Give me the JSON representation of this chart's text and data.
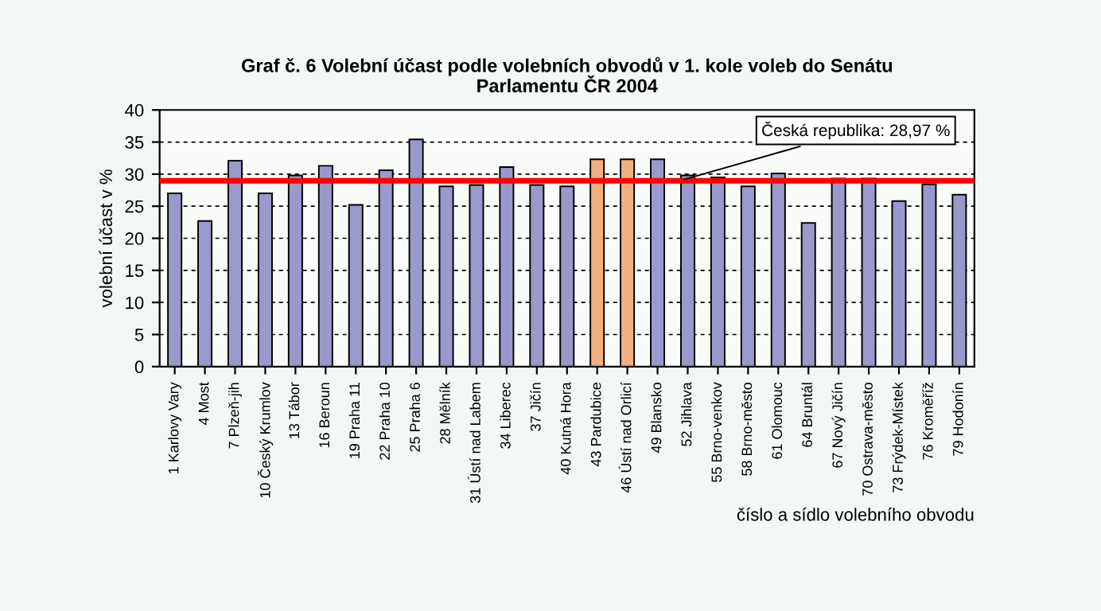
{
  "chart_data": {
    "type": "bar",
    "title": "Graf č. 6 Volební účast podle volebních obvodů v 1. kole voleb do Senátu\nParlamentu ČR 2004",
    "xlabel": "číslo a sídlo volebního obvodu",
    "ylabel": "volební účast v %",
    "categories": [
      "1 Karlovy Vary",
      "4 Most",
      "7 Plzeň-jih",
      "10 Český Krumlov",
      "13 Tábor",
      "16 Beroun",
      "19 Praha 11",
      "22 Praha 10",
      "25 Praha 6",
      "28 Mělník",
      "31 Ústí nad Labem",
      "34 Liberec",
      "37 Jičín",
      "40 Kutná Hora",
      "43 Pardubice",
      "46 Ústí nad Orlicí",
      "49 Blansko",
      "52 Jihlava",
      "55 Brno-venkov",
      "58 Brno-město",
      "61 Olomouc",
      "64 Bruntál",
      "67 Nový Jičín",
      "70 Ostrava-město",
      "73 Frýdek-Místek",
      "76 Kroměříž",
      "79 Hodonín"
    ],
    "values": [
      27.0,
      22.7,
      32.1,
      27.0,
      29.8,
      31.3,
      25.2,
      30.6,
      35.4,
      28.1,
      28.3,
      31.1,
      28.3,
      28.1,
      32.3,
      32.3,
      32.3,
      29.8,
      29.5,
      28.1,
      30.1,
      22.4,
      29.3,
      29.3,
      25.8,
      28.4,
      26.8
    ],
    "colors": [
      "#9999cc",
      "#9999cc",
      "#9999cc",
      "#9999cc",
      "#9999cc",
      "#9999cc",
      "#9999cc",
      "#9999cc",
      "#9999cc",
      "#9999cc",
      "#9999cc",
      "#9999cc",
      "#9999cc",
      "#9999cc",
      "#f0b080",
      "#f0b080",
      "#9999cc",
      "#9999cc",
      "#9999cc",
      "#9999cc",
      "#9999cc",
      "#9999cc",
      "#9999cc",
      "#9999cc",
      "#9999cc",
      "#9999cc",
      "#9999cc"
    ],
    "ylim": [
      0,
      40
    ],
    "yticks": [
      0,
      5,
      10,
      15,
      20,
      25,
      30,
      35,
      40
    ],
    "grid": "y",
    "ref_lines": [
      {
        "axis": "y",
        "value": 28.97,
        "label": "Česká republika: 28,97 %",
        "color": "#ff0000"
      }
    ]
  }
}
